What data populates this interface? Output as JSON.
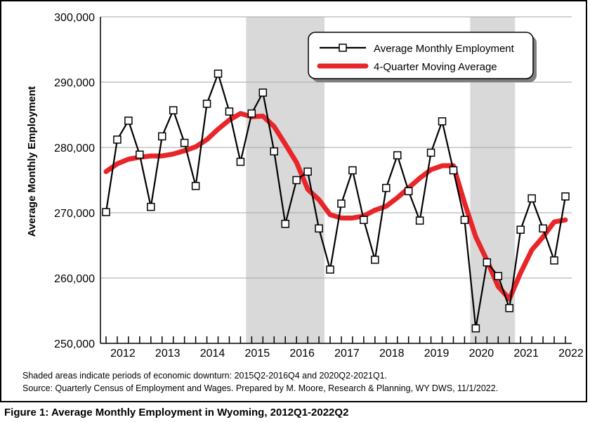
{
  "chart_data": {
    "type": "line",
    "ylabel": "Average Monthly Employment",
    "ylim": [
      250000,
      300000
    ],
    "y_ticks": [
      "300,000",
      "290,000",
      "280,000",
      "270,000",
      "260,000",
      "250,000"
    ],
    "y_tick_values": [
      300000,
      290000,
      280000,
      270000,
      260000,
      250000
    ],
    "year_labels": [
      "2012",
      "2013",
      "2014",
      "2015",
      "2016",
      "2017",
      "2018",
      "2019",
      "2020",
      "2021",
      "2022"
    ],
    "shaded_periods": [
      {
        "start": "2015Q2",
        "end": "2016Q4"
      },
      {
        "start": "2020Q2",
        "end": "2021Q1"
      }
    ],
    "quarters": [
      "2012Q1",
      "2012Q2",
      "2012Q3",
      "2012Q4",
      "2013Q1",
      "2013Q2",
      "2013Q3",
      "2013Q4",
      "2014Q1",
      "2014Q2",
      "2014Q3",
      "2014Q4",
      "2015Q1",
      "2015Q2",
      "2015Q3",
      "2015Q4",
      "2016Q1",
      "2016Q2",
      "2016Q3",
      "2016Q4",
      "2017Q1",
      "2017Q2",
      "2017Q3",
      "2017Q4",
      "2018Q1",
      "2018Q2",
      "2018Q3",
      "2018Q4",
      "2019Q1",
      "2019Q2",
      "2019Q3",
      "2019Q4",
      "2020Q1",
      "2020Q2",
      "2020Q3",
      "2020Q4",
      "2021Q1",
      "2021Q2",
      "2021Q3",
      "2021Q4",
      "2022Q1",
      "2022Q2"
    ],
    "series": [
      {
        "name": "Average Monthly Employment",
        "color": "#000000",
        "marker": "open-square",
        "values": [
          270100,
          281200,
          284100,
          278900,
          270900,
          281700,
          285700,
          280700,
          274100,
          286700,
          291300,
          285500,
          277800,
          285200,
          288400,
          279400,
          268300,
          275000,
          276300,
          267600,
          261300,
          271400,
          276500,
          268900,
          262800,
          273800,
          278800,
          273300,
          268800,
          279200,
          284000,
          276500,
          268900,
          252300,
          262400,
          260300,
          255400,
          267400,
          272200,
          267600,
          262700,
          272500
        ]
      },
      {
        "name": "4-Quarter Moving Average",
        "color": "#e8262a",
        "values": [
          276300,
          277500,
          278200,
          278500,
          278700,
          278700,
          279000,
          279500,
          280100,
          281200,
          282800,
          284200,
          285200,
          284700,
          284800,
          283200,
          280500,
          277700,
          273600,
          272000,
          269700,
          269200,
          269200,
          269500,
          270400,
          271000,
          272300,
          273800,
          275300,
          276600,
          277200,
          277200,
          271500,
          266300,
          262700,
          258700,
          256800,
          260800,
          264300,
          266300,
          268600,
          268900
        ]
      }
    ],
    "legend": {
      "placement": "top-right",
      "labels": [
        "Average Monthly Employment",
        "4-Quarter Moving Average"
      ]
    }
  },
  "notes": {
    "line1": "Shaded areas indicate periods of economic downturn: 2015Q2-2016Q4 and 2020Q2-2021Q1.",
    "line2": "Source: Quarterly Census of Employment and Wages. Prepared by M. Moore, Research & Planning, WY DWS, 11/1/2022."
  },
  "caption": "Figure 1: Average Monthly Employment in Wyoming, 2012Q1-2022Q2"
}
